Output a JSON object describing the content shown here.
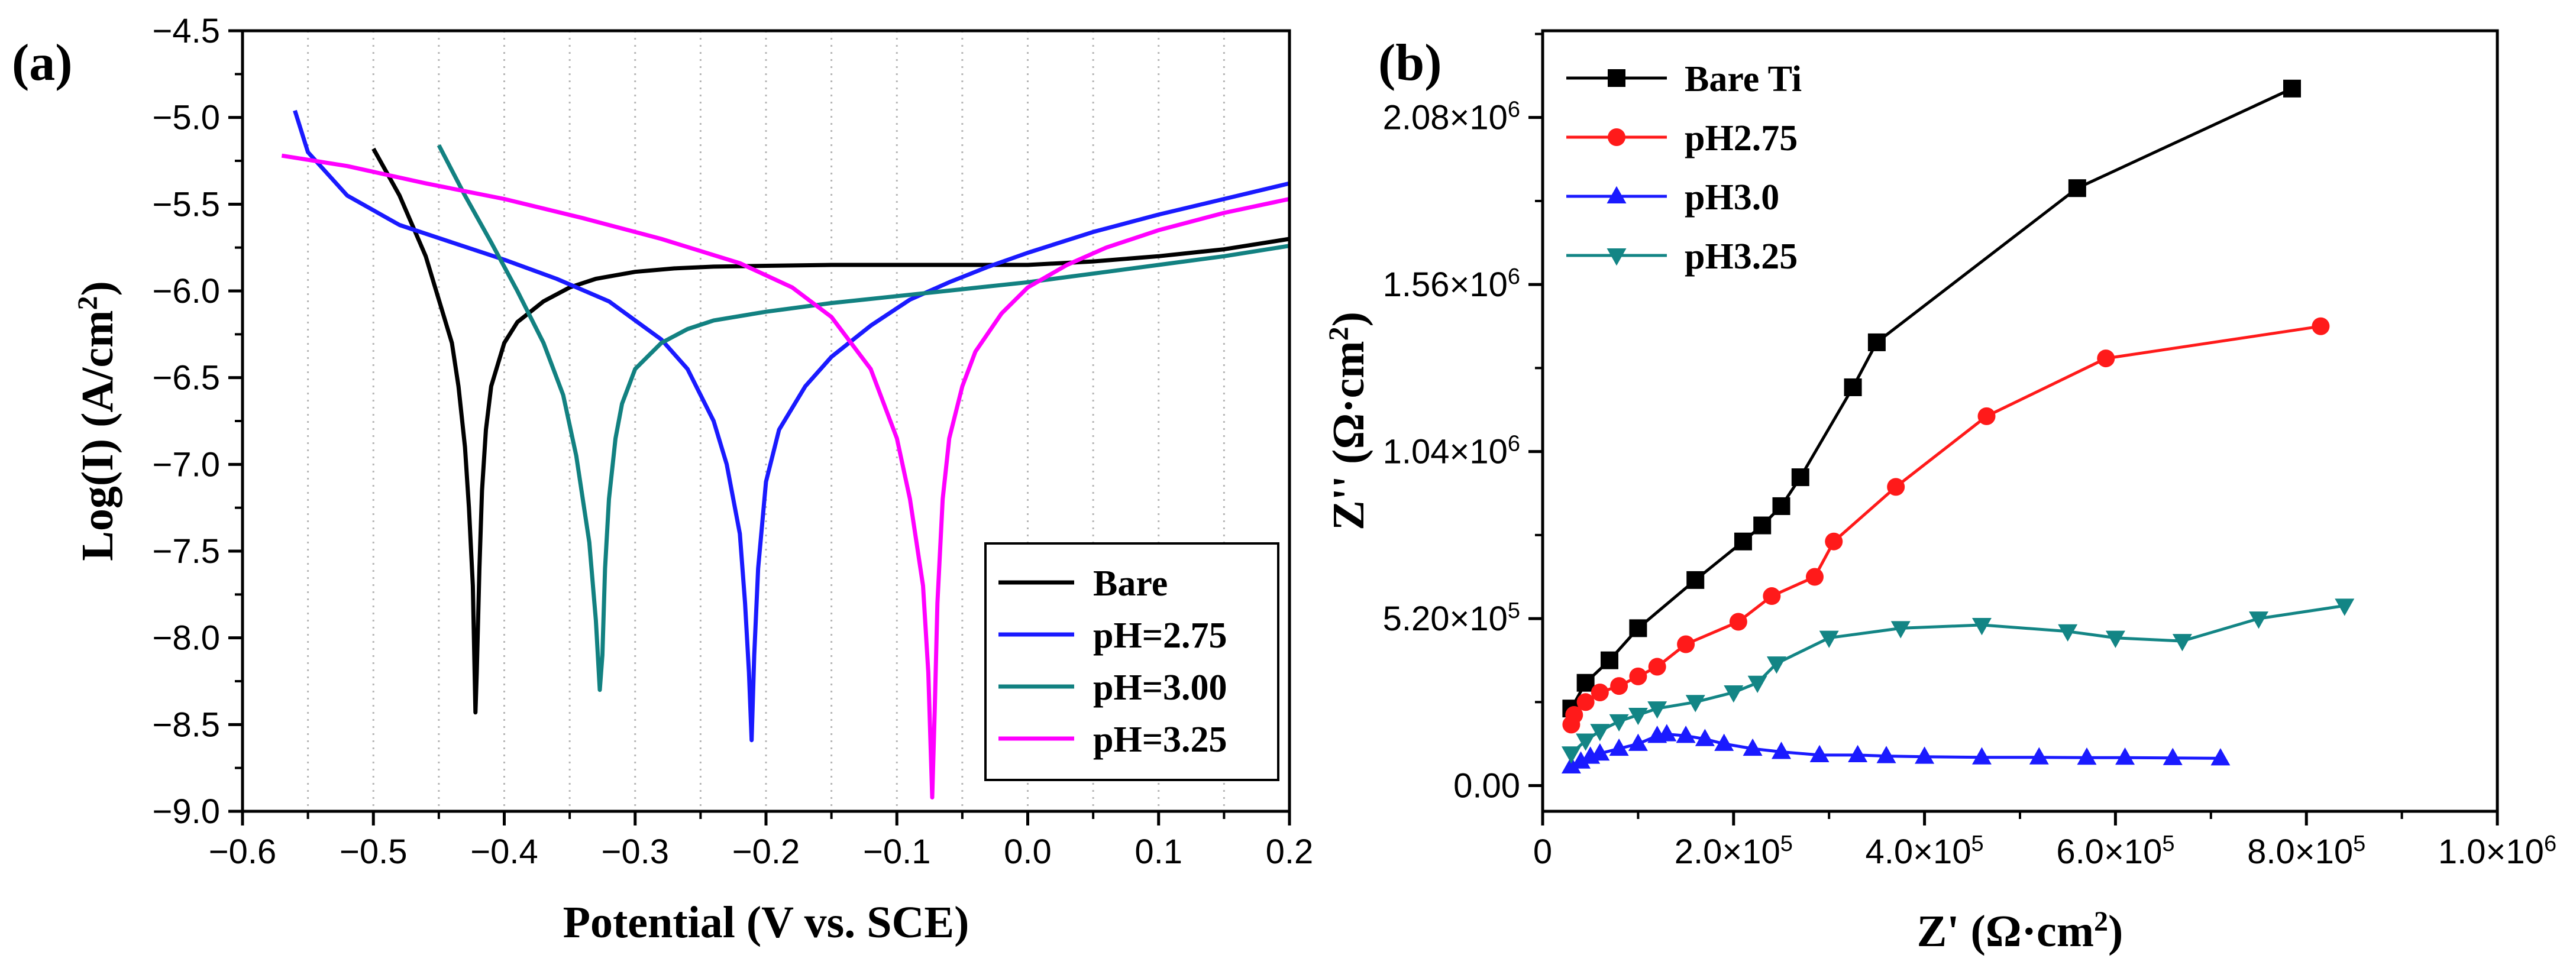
{
  "chart_data": [
    {
      "panel_label": "(a)",
      "type": "line",
      "xlabel": "Potential (V vs. SCE)",
      "ylabel": "Log(I) (A/cm",
      "ylabel_sup": "2",
      "ylabel_end": ")",
      "xlim": [
        -0.6,
        0.2
      ],
      "ylim": [
        -9.0,
        -4.5
      ],
      "x_ticks": [
        -0.6,
        -0.5,
        -0.4,
        -0.3,
        -0.2,
        -0.1,
        0.0,
        0.1,
        0.2
      ],
      "x_tick_labels": [
        "−0.6",
        "−0.5",
        "−0.4",
        "−0.3",
        "−0.2",
        "−0.1",
        "0.0",
        "0.1",
        "0.2"
      ],
      "y_ticks": [
        -4.5,
        -5.0,
        -5.5,
        -6.0,
        -6.5,
        -7.0,
        -7.5,
        -8.0,
        -8.5,
        -9.0
      ],
      "y_tick_labels": [
        "−4.5",
        "−5.0",
        "−5.5",
        "−6.0",
        "−6.5",
        "−7.0",
        "−7.5",
        "−8.0",
        "−8.5",
        "−9.0"
      ],
      "grid": "vertical dotted",
      "legend_position": "bottom-right",
      "series": [
        {
          "name": "Bare",
          "color": "#000000",
          "x": [
            -0.5,
            -0.48,
            -0.46,
            -0.44,
            -0.435,
            -0.43,
            -0.427,
            -0.424,
            -0.422,
            -0.421,
            -0.419,
            -0.417,
            -0.414,
            -0.41,
            -0.4,
            -0.39,
            -0.37,
            -0.35,
            -0.33,
            -0.3,
            -0.27,
            -0.24,
            -0.2,
            -0.15,
            -0.1,
            -0.05,
            0.0,
            0.05,
            0.1,
            0.15,
            0.2
          ],
          "y": [
            -5.18,
            -5.45,
            -5.8,
            -6.3,
            -6.55,
            -6.9,
            -7.25,
            -7.7,
            -8.43,
            -8.2,
            -7.6,
            -7.15,
            -6.8,
            -6.55,
            -6.3,
            -6.18,
            -6.06,
            -5.98,
            -5.93,
            -5.89,
            -5.87,
            -5.86,
            -5.855,
            -5.85,
            -5.85,
            -5.85,
            -5.85,
            -5.83,
            -5.8,
            -5.76,
            -5.7
          ]
        },
        {
          "name": "pH=2.75",
          "color": "#1a1aff",
          "x": [
            -0.56,
            -0.55,
            -0.52,
            -0.48,
            -0.44,
            -0.4,
            -0.36,
            -0.32,
            -0.28,
            -0.26,
            -0.24,
            -0.23,
            -0.22,
            -0.216,
            -0.213,
            -0.211,
            -0.209,
            -0.206,
            -0.2,
            -0.19,
            -0.17,
            -0.15,
            -0.12,
            -0.09,
            -0.06,
            -0.03,
            0.0,
            0.05,
            0.1,
            0.15,
            0.2
          ],
          "y": [
            -4.96,
            -5.2,
            -5.45,
            -5.62,
            -5.72,
            -5.82,
            -5.93,
            -6.06,
            -6.28,
            -6.45,
            -6.75,
            -7.0,
            -7.4,
            -7.8,
            -8.2,
            -8.59,
            -8.1,
            -7.6,
            -7.1,
            -6.8,
            -6.55,
            -6.38,
            -6.2,
            -6.05,
            -5.95,
            -5.86,
            -5.78,
            -5.66,
            -5.56,
            -5.47,
            -5.38
          ]
        },
        {
          "name": "pH=3.00",
          "color": "#128181",
          "x": [
            -0.45,
            -0.43,
            -0.41,
            -0.39,
            -0.37,
            -0.355,
            -0.345,
            -0.335,
            -0.33,
            -0.327,
            -0.325,
            -0.323,
            -0.32,
            -0.315,
            -0.31,
            -0.3,
            -0.28,
            -0.26,
            -0.24,
            -0.2,
            -0.15,
            -0.1,
            -0.05,
            0.0,
            0.05,
            0.1,
            0.15,
            0.2
          ],
          "y": [
            -5.16,
            -5.45,
            -5.72,
            -6.0,
            -6.3,
            -6.6,
            -6.95,
            -7.45,
            -7.9,
            -8.3,
            -8.1,
            -7.6,
            -7.2,
            -6.85,
            -6.65,
            -6.45,
            -6.3,
            -6.22,
            -6.17,
            -6.12,
            -6.07,
            -6.03,
            -5.99,
            -5.95,
            -5.9,
            -5.85,
            -5.8,
            -5.74
          ]
        },
        {
          "name": "pH=3.25",
          "color": "#ff00ff",
          "x": [
            -0.57,
            -0.52,
            -0.46,
            -0.4,
            -0.34,
            -0.28,
            -0.22,
            -0.18,
            -0.15,
            -0.12,
            -0.1,
            -0.09,
            -0.08,
            -0.076,
            -0.073,
            -0.071,
            -0.069,
            -0.065,
            -0.06,
            -0.05,
            -0.04,
            -0.02,
            0.0,
            0.03,
            0.06,
            0.1,
            0.15,
            0.2
          ],
          "y": [
            -5.22,
            -5.28,
            -5.38,
            -5.47,
            -5.58,
            -5.7,
            -5.84,
            -5.98,
            -6.15,
            -6.45,
            -6.85,
            -7.2,
            -7.7,
            -8.2,
            -8.92,
            -8.4,
            -7.8,
            -7.2,
            -6.85,
            -6.55,
            -6.35,
            -6.13,
            -5.98,
            -5.85,
            -5.75,
            -5.65,
            -5.55,
            -5.47
          ]
        }
      ]
    },
    {
      "panel_label": "(b)",
      "type": "line",
      "xlabel": "Z' (Ω·cm",
      "xlabel_sup": "2",
      "xlabel_end": ")",
      "ylabel": "Z'' (Ω·cm",
      "ylabel_sup": "2",
      "ylabel_end": ")",
      "xlim": [
        0,
        1000000
      ],
      "ylim": [
        -80000,
        2350000
      ],
      "x_ticks": [
        0,
        200000,
        400000,
        600000,
        800000,
        1000000
      ],
      "x_tick_labels": [
        {
          "base": "0",
          "exp": ""
        },
        {
          "base": "2.0×10",
          "exp": "5"
        },
        {
          "base": "4.0×10",
          "exp": "5"
        },
        {
          "base": "6.0×10",
          "exp": "5"
        },
        {
          "base": "8.0×10",
          "exp": "5"
        },
        {
          "base": "1.0×10",
          "exp": "6"
        }
      ],
      "y_ticks": [
        0,
        520000,
        1040000,
        1560000,
        2080000
      ],
      "y_tick_labels": [
        {
          "base": "0.00",
          "exp": ""
        },
        {
          "base": "5.20×10",
          "exp": "5"
        },
        {
          "base": "1.04×10",
          "exp": "6"
        },
        {
          "base": "1.56×10",
          "exp": "6"
        },
        {
          "base": "2.08×10",
          "exp": "6"
        }
      ],
      "grid": "off",
      "legend_position": "top-left",
      "series": [
        {
          "name": "Bare Ti",
          "color": "#000000",
          "marker": "square",
          "x": [
            30000,
            45000,
            70000,
            100000,
            160000,
            210000,
            230000,
            250000,
            270000,
            325000,
            350000,
            560000,
            785000
          ],
          "y": [
            240000,
            320000,
            390000,
            490000,
            640000,
            760000,
            810000,
            870000,
            960000,
            1240000,
            1380000,
            1860000,
            2170000
          ]
        },
        {
          "name": "pH2.75",
          "color": "#ff1a1a",
          "marker": "circle",
          "x": [
            30000,
            33000,
            45000,
            60000,
            80000,
            100000,
            120000,
            150000,
            205000,
            240000,
            285000,
            305000,
            370000,
            465000,
            590000,
            815000
          ],
          "y": [
            190000,
            220000,
            260000,
            290000,
            310000,
            340000,
            370000,
            440000,
            510000,
            590000,
            650000,
            760000,
            930000,
            1150000,
            1330000,
            1430000
          ]
        },
        {
          "name": "pH3.0",
          "color": "#1a1aff",
          "marker": "triangle-up",
          "x": [
            30000,
            40000,
            50000,
            60000,
            80000,
            100000,
            120000,
            130000,
            150000,
            170000,
            190000,
            220000,
            250000,
            290000,
            330000,
            360000,
            400000,
            460000,
            520000,
            570000,
            610000,
            660000,
            710000
          ],
          "y": [
            60000,
            75000,
            90000,
            100000,
            115000,
            130000,
            155000,
            160000,
            155000,
            145000,
            130000,
            115000,
            105000,
            95000,
            95000,
            92000,
            90000,
            88000,
            88000,
            87000,
            87000,
            86000,
            85000
          ]
        },
        {
          "name": "pH3.25",
          "color": "#138585",
          "marker": "triangle-down",
          "x": [
            30000,
            45000,
            60000,
            80000,
            100000,
            120000,
            160000,
            200000,
            225000,
            245000,
            300000,
            375000,
            460000,
            550000,
            600000,
            670000,
            750000,
            840000
          ],
          "y": [
            100000,
            140000,
            170000,
            200000,
            220000,
            240000,
            260000,
            290000,
            320000,
            380000,
            460000,
            490000,
            500000,
            480000,
            460000,
            450000,
            520000,
            560000
          ]
        }
      ]
    }
  ]
}
